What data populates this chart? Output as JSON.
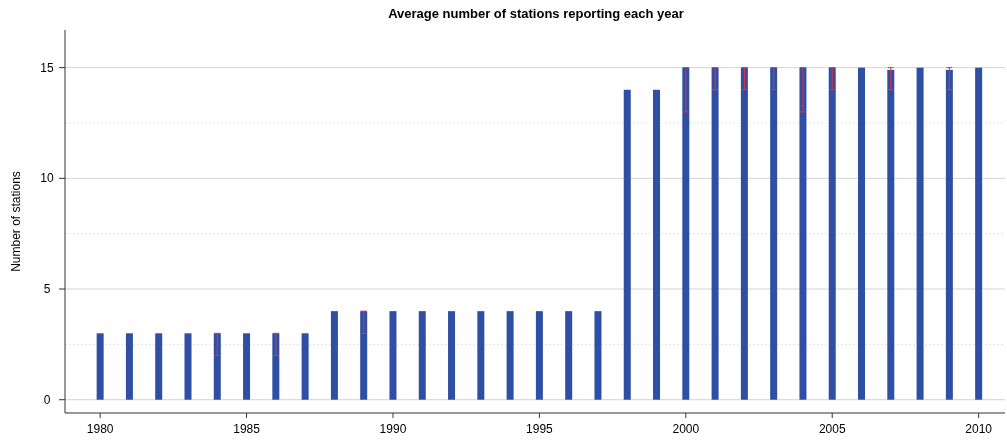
{
  "chart_data": {
    "type": "bar",
    "title": "Average number of stations reporting each year",
    "ylabel": "Number of stations",
    "x": [
      1980,
      1981,
      1982,
      1983,
      1984,
      1985,
      1986,
      1987,
      1988,
      1989,
      1990,
      1991,
      1992,
      1993,
      1994,
      1995,
      1996,
      1997,
      1998,
      1999,
      2000,
      2001,
      2002,
      2003,
      2004,
      2005,
      2006,
      2007,
      2008,
      2009,
      2010
    ],
    "values": [
      3,
      3,
      3,
      3,
      3,
      3,
      3,
      3,
      4,
      4,
      4,
      4,
      4,
      4,
      4,
      4,
      4,
      4,
      14,
      14,
      15,
      15,
      15,
      15,
      15,
      15,
      15,
      14.9,
      15,
      14.9,
      15
    ],
    "errors": [
      null,
      null,
      null,
      null,
      [
        2,
        3
      ],
      null,
      [
        2,
        3
      ],
      null,
      null,
      [
        3,
        4
      ],
      null,
      null,
      null,
      null,
      null,
      null,
      null,
      null,
      null,
      null,
      [
        13,
        15
      ],
      [
        14,
        15
      ],
      [
        14,
        15
      ],
      [
        14,
        15
      ],
      [
        13,
        15
      ],
      [
        14,
        15
      ],
      null,
      [
        14,
        15
      ],
      null,
      [
        14,
        15
      ],
      null
    ],
    "color": "#2e4fa3",
    "xlim": [
      1978.8,
      2010.9
    ],
    "xticks": [
      1980,
      1985,
      1990,
      1995,
      2000,
      2005,
      2010
    ],
    "ylim": [
      -0.6,
      16.7
    ],
    "yticks": [
      0,
      5,
      10,
      15
    ],
    "grid": "y"
  }
}
